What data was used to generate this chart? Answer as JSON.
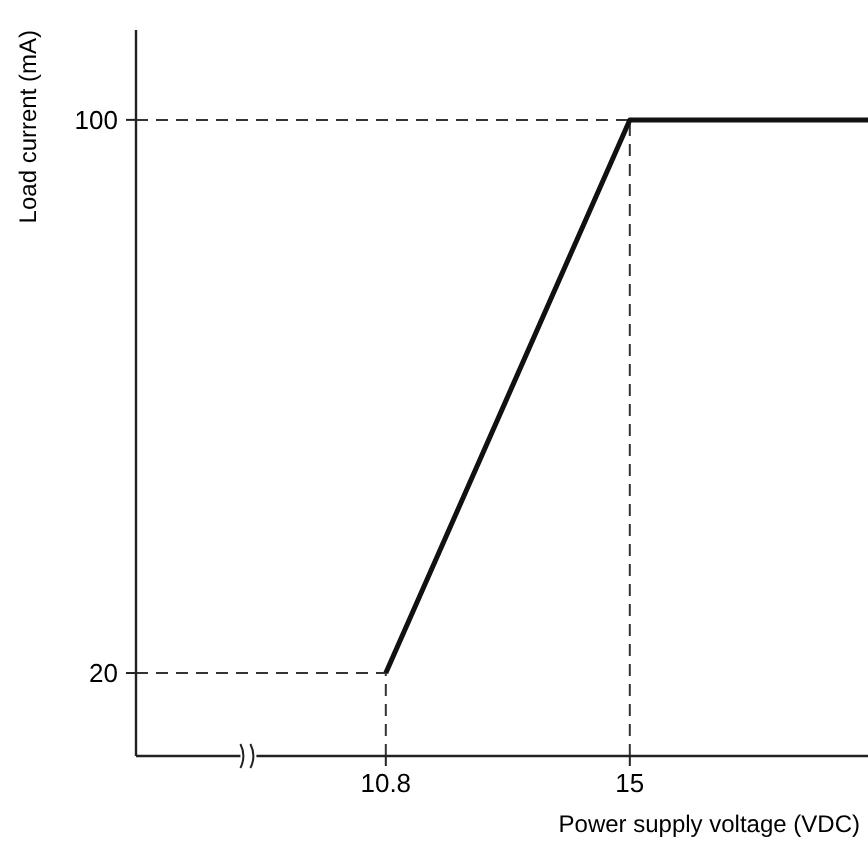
{
  "chart_data": {
    "type": "line",
    "xlabel": "Power supply voltage (VDC)",
    "ylabel": "Load current (mA)",
    "series": [
      {
        "color": "#111111",
        "x": [
          10.8,
          15,
          19.1
        ],
        "values": [
          20,
          100,
          100
        ]
      }
    ],
    "xlim": [
      6.5,
      19.1
    ],
    "ylim": [
      8,
      113
    ],
    "xticks": [
      10.8,
      15
    ],
    "yticks": [
      20,
      100
    ],
    "ref_lines": [
      {
        "axis": "x",
        "value": 10.8,
        "color": "#333333",
        "line_style": "dashed"
      },
      {
        "axis": "x",
        "value": 15,
        "color": "#333333",
        "line_style": "dashed"
      },
      {
        "axis": "y",
        "value": 20,
        "color": "#333333",
        "line_style": "dashed"
      },
      {
        "axis": "y",
        "value": 100,
        "color": "#333333",
        "line_style": "dashed"
      }
    ],
    "grid": false,
    "line_style": "solid"
  }
}
